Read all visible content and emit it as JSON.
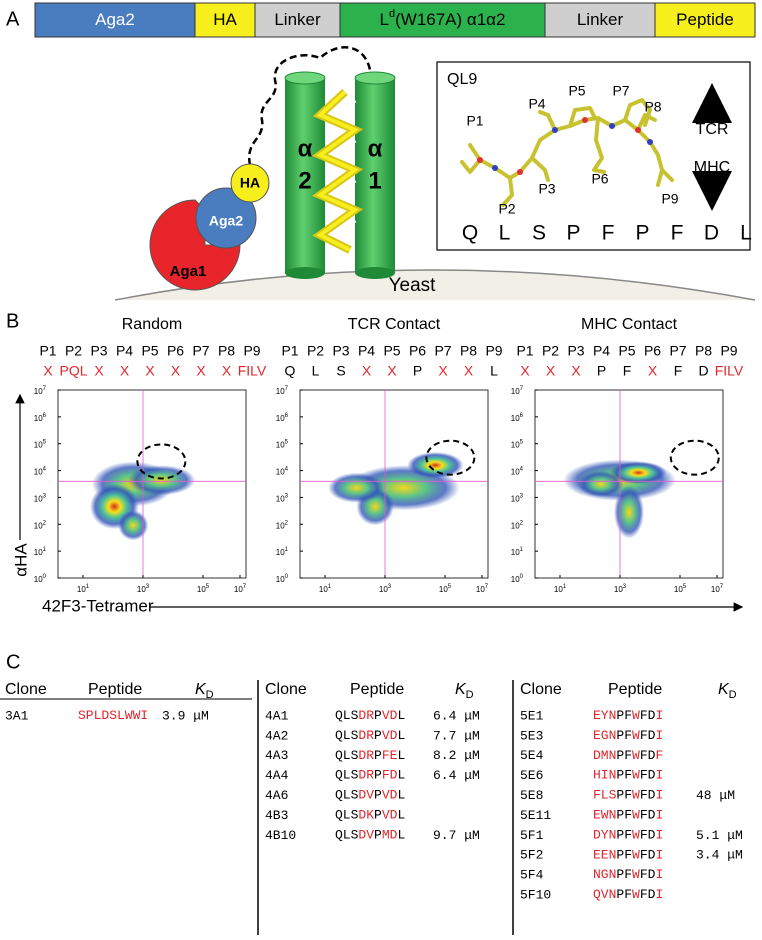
{
  "panel_a": {
    "label": "A",
    "construct": [
      {
        "text": "Aga2",
        "color": "#4a7cc0"
      },
      {
        "text": "HA",
        "color": "#f6ef1c"
      },
      {
        "text": "Linker",
        "color": "#cfcfcf"
      },
      {
        "text": "L",
        "sup": "d",
        "rest": "(W167A) α1α2",
        "color": "#2bb24c"
      },
      {
        "text": "Linker",
        "color": "#cfcfcf"
      },
      {
        "text": "Peptide",
        "color": "#f6ef1c"
      }
    ],
    "diagram": {
      "alpha2": [
        "α",
        "2"
      ],
      "alpha1": [
        "α",
        "1"
      ],
      "ha": "HA",
      "aga2": "Aga2",
      "aga1": "Aga1",
      "yeast": "Yeast"
    },
    "inset": {
      "title": "QL9",
      "positions": [
        "P1",
        "P2",
        "P3",
        "P4",
        "P5",
        "P6",
        "P7",
        "P8",
        "P9"
      ],
      "up": "TCR",
      "down": "MHC",
      "sequence": [
        "Q",
        "L",
        "S",
        "P",
        "F",
        "P",
        "F",
        "D",
        "L"
      ]
    }
  },
  "panel_b": {
    "label": "B",
    "y_axis_label": "αHA",
    "x_axis_label": "42F3-Tetramer",
    "positions": [
      "P1",
      "P2",
      "P3",
      "P4",
      "P5",
      "P6",
      "P7",
      "P8",
      "P9"
    ],
    "y_ticks": [
      {
        "base": "10",
        "exp": "0"
      },
      {
        "base": "10",
        "exp": "1"
      },
      {
        "base": "10",
        "exp": "2"
      },
      {
        "base": "10",
        "exp": "3"
      },
      {
        "base": "10",
        "exp": "4"
      },
      {
        "base": "10",
        "exp": "5"
      },
      {
        "base": "10",
        "exp": "6"
      },
      {
        "base": "10",
        "exp": "7"
      }
    ],
    "x_ticks": [
      {
        "base": "10",
        "exp": "1"
      },
      {
        "base": "10",
        "exp": "3"
      },
      {
        "base": "10",
        "exp": "5"
      },
      {
        "base": "10",
        "exp": "7"
      }
    ],
    "plots": [
      {
        "title": "Random",
        "residues": [
          [
            "X",
            "#e0262b"
          ],
          [
            "PQL",
            "#e0262b"
          ],
          [
            "X",
            "#e0262b"
          ],
          [
            "X",
            "#e0262b"
          ],
          [
            "X",
            "#e0262b"
          ],
          [
            "X",
            "#e0262b"
          ],
          [
            "X",
            "#e0262b"
          ],
          [
            "X",
            "#e0262b"
          ],
          [
            "FILV",
            "#e0262b"
          ]
        ]
      },
      {
        "title": "TCR Contact",
        "residues": [
          [
            "Q",
            "#000000"
          ],
          [
            "L",
            "#000000"
          ],
          [
            "S",
            "#000000"
          ],
          [
            "X",
            "#e0262b"
          ],
          [
            "X",
            "#e0262b"
          ],
          [
            "P",
            "#000000"
          ],
          [
            "X",
            "#e0262b"
          ],
          [
            "X",
            "#e0262b"
          ],
          [
            "L",
            "#000000"
          ]
        ]
      },
      {
        "title": "MHC Contact",
        "residues": [
          [
            "X",
            "#e0262b"
          ],
          [
            "X",
            "#e0262b"
          ],
          [
            "X",
            "#e0262b"
          ],
          [
            "P",
            "#000000"
          ],
          [
            "F",
            "#000000"
          ],
          [
            "X",
            "#e0262b"
          ],
          [
            "F",
            "#000000"
          ],
          [
            "D",
            "#000000"
          ],
          [
            "FILV",
            "#e0262b"
          ]
        ]
      }
    ]
  },
  "panel_c": {
    "label": "C",
    "headers": {
      "clone": "Clone",
      "peptide": "Peptide",
      "kd": "K",
      "kd_sub": "D"
    },
    "tables": [
      {
        "rows": [
          {
            "clone": "3A1",
            "peptide": [
              [
                "SPLDSLWWI",
                "#e0262b"
              ]
            ],
            "kd": "3.9 μM"
          }
        ]
      },
      {
        "rows": [
          {
            "clone": "4A1",
            "peptide": [
              [
                "QLS",
                "#000000"
              ],
              [
                "DR",
                "#e0262b"
              ],
              [
                "P",
                "#000000"
              ],
              [
                "VD",
                "#e0262b"
              ],
              [
                "L",
                "#000000"
              ]
            ],
            "kd": "6.4 μM"
          },
          {
            "clone": "4A2",
            "peptide": [
              [
                "QLS",
                "#000000"
              ],
              [
                "DR",
                "#e0262b"
              ],
              [
                "P",
                "#000000"
              ],
              [
                "VD",
                "#e0262b"
              ],
              [
                "L",
                "#000000"
              ]
            ],
            "kd": "7.7 μM"
          },
          {
            "clone": "4A3",
            "peptide": [
              [
                "QLS",
                "#000000"
              ],
              [
                "DR",
                "#e0262b"
              ],
              [
                "P",
                "#000000"
              ],
              [
                "FE",
                "#e0262b"
              ],
              [
                "L",
                "#000000"
              ]
            ],
            "kd": "8.2 μM"
          },
          {
            "clone": "4A4",
            "peptide": [
              [
                "QLS",
                "#000000"
              ],
              [
                "DR",
                "#e0262b"
              ],
              [
                "P",
                "#000000"
              ],
              [
                "FD",
                "#e0262b"
              ],
              [
                "L",
                "#000000"
              ]
            ],
            "kd": "6.4 μM"
          },
          {
            "clone": "4A6",
            "peptide": [
              [
                "QLS",
                "#000000"
              ],
              [
                "DV",
                "#e0262b"
              ],
              [
                "P",
                "#000000"
              ],
              [
                "VD",
                "#e0262b"
              ],
              [
                "L",
                "#000000"
              ]
            ]
          },
          {
            "clone": "4B3",
            "peptide": [
              [
                "QLS",
                "#000000"
              ],
              [
                "DK",
                "#e0262b"
              ],
              [
                "P",
                "#000000"
              ],
              [
                "VD",
                "#e0262b"
              ],
              [
                "L",
                "#000000"
              ]
            ]
          },
          {
            "clone": "4B10",
            "peptide": [
              [
                "QLS",
                "#000000"
              ],
              [
                "DV",
                "#e0262b"
              ],
              [
                "P",
                "#000000"
              ],
              [
                "MD",
                "#e0262b"
              ],
              [
                "L",
                "#000000"
              ]
            ],
            "kd": "9.7 μM"
          }
        ]
      },
      {
        "rows": [
          {
            "clone": "5E1",
            "peptide": [
              [
                "EYN",
                "#e0262b"
              ],
              [
                "PF",
                "#000000"
              ],
              [
                "W",
                "#e0262b"
              ],
              [
                "FD",
                "#000000"
              ],
              [
                "I",
                "#e0262b"
              ]
            ]
          },
          {
            "clone": "5E3",
            "peptide": [
              [
                "EGN",
                "#e0262b"
              ],
              [
                "PF",
                "#000000"
              ],
              [
                "W",
                "#e0262b"
              ],
              [
                "FD",
                "#000000"
              ],
              [
                "I",
                "#e0262b"
              ]
            ]
          },
          {
            "clone": "5E4",
            "peptide": [
              [
                "DMN",
                "#e0262b"
              ],
              [
                "PF",
                "#000000"
              ],
              [
                "W",
                "#e0262b"
              ],
              [
                "FD",
                "#000000"
              ],
              [
                "F",
                "#e0262b"
              ]
            ]
          },
          {
            "clone": "5E6",
            "peptide": [
              [
                "HIN",
                "#e0262b"
              ],
              [
                "PF",
                "#000000"
              ],
              [
                "W",
                "#e0262b"
              ],
              [
                "FD",
                "#000000"
              ],
              [
                "I",
                "#e0262b"
              ]
            ]
          },
          {
            "clone": "5E8",
            "peptide": [
              [
                "FLS",
                "#e0262b"
              ],
              [
                "PF",
                "#000000"
              ],
              [
                "W",
                "#e0262b"
              ],
              [
                "FD",
                "#000000"
              ],
              [
                "I",
                "#e0262b"
              ]
            ],
            "kd": "48 μM"
          },
          {
            "clone": "5E11",
            "peptide": [
              [
                "EWN",
                "#e0262b"
              ],
              [
                "PF",
                "#000000"
              ],
              [
                "W",
                "#e0262b"
              ],
              [
                "FD",
                "#000000"
              ],
              [
                "I",
                "#e0262b"
              ]
            ]
          },
          {
            "clone": "5F1",
            "peptide": [
              [
                "DYN",
                "#e0262b"
              ],
              [
                "PF",
                "#000000"
              ],
              [
                "W",
                "#e0262b"
              ],
              [
                "FD",
                "#000000"
              ],
              [
                "I",
                "#e0262b"
              ]
            ],
            "kd": "5.1 μM"
          },
          {
            "clone": "5F2",
            "peptide": [
              [
                "EEN",
                "#e0262b"
              ],
              [
                "PF",
                "#000000"
              ],
              [
                "W",
                "#e0262b"
              ],
              [
                "FD",
                "#000000"
              ],
              [
                "I",
                "#e0262b"
              ]
            ],
            "kd": "3.4 μM"
          },
          {
            "clone": "5F4",
            "peptide": [
              [
                "NGN",
                "#e0262b"
              ],
              [
                "PF",
                "#000000"
              ],
              [
                "W",
                "#e0262b"
              ],
              [
                "FD",
                "#000000"
              ],
              [
                "I",
                "#e0262b"
              ]
            ]
          },
          {
            "clone": "5F10",
            "peptide": [
              [
                "QVN",
                "#e0262b"
              ],
              [
                "PF",
                "#000000"
              ],
              [
                "W",
                "#e0262b"
              ],
              [
                "FD",
                "#000000"
              ],
              [
                "I",
                "#e0262b"
              ]
            ]
          }
        ]
      }
    ]
  }
}
